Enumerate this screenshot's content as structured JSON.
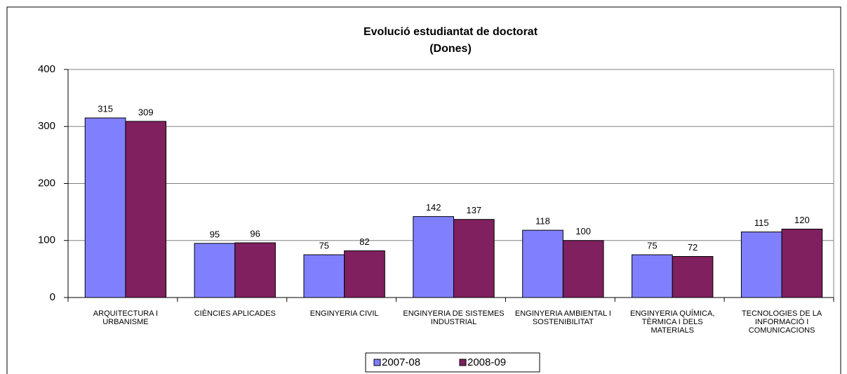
{
  "chart_data": {
    "type": "bar",
    "title": "Evolució estudiantat  de doctorat",
    "subtitle": "(Dones)",
    "categories": [
      "ARQUITECTURA I URBANISME",
      "CIÈNCIES APLICADES",
      "ENGINYERIA CIVIL",
      "ENGINYERIA DE SISTEMES INDUSTRIAL",
      "ENGINYERIA AMBIENTAL I SOSTENIBILITAT",
      "ENGINYERIA QUÍMICA, TÈRMICA I DELS MATERIALS",
      "TECNOLOGIES DE LA INFORMACIÓ I COMUNICACIONS"
    ],
    "series": [
      {
        "name": "2007-08",
        "color": "#8080ff",
        "values": [
          315,
          95,
          75,
          142,
          118,
          75,
          115
        ]
      },
      {
        "name": "2008-09",
        "color": "#80205f",
        "values": [
          309,
          96,
          82,
          137,
          100,
          72,
          120
        ]
      }
    ],
    "ylim": [
      0,
      400
    ],
    "yticks": [
      0,
      100,
      200,
      300,
      400
    ],
    "grid": true,
    "legend": "bottom"
  }
}
